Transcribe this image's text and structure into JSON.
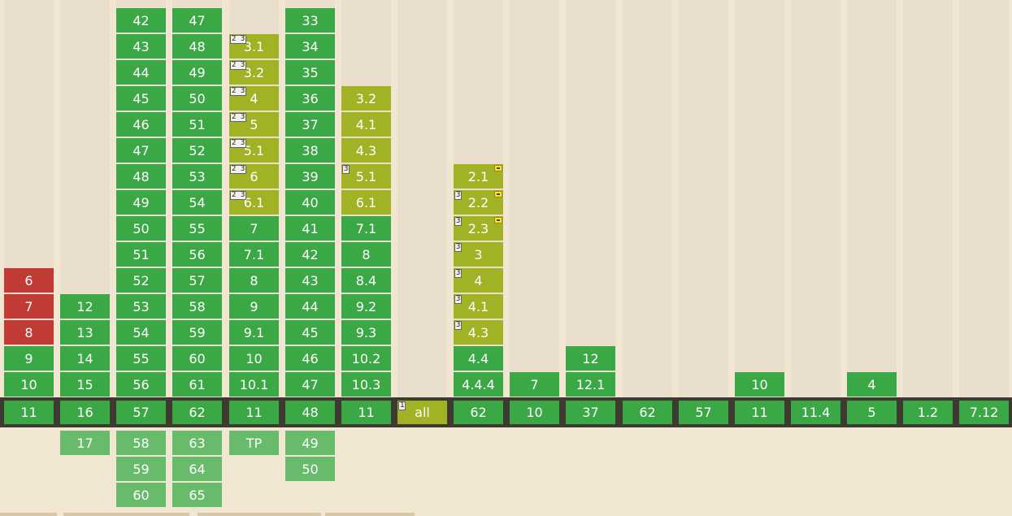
{
  "colors": {
    "supported": "#39a845",
    "partial": "#a1b224",
    "unsupported": "#c13b34",
    "future": "#69bb6c",
    "page_background": "#f1e6d2",
    "column_background": "#eadfcc",
    "current_band": "#3f3a31"
  },
  "columns": [
    {
      "cells": [
        {
          "label": "6",
          "status": "n"
        },
        {
          "label": "7",
          "status": "n"
        },
        {
          "label": "8",
          "status": "n"
        },
        {
          "label": "9",
          "status": "y"
        },
        {
          "label": "10",
          "status": "y"
        }
      ],
      "current": {
        "label": "11",
        "status": "y"
      },
      "future": []
    },
    {
      "cells": [
        {
          "label": "12",
          "status": "y"
        },
        {
          "label": "13",
          "status": "y"
        },
        {
          "label": "14",
          "status": "y"
        },
        {
          "label": "15",
          "status": "y"
        }
      ],
      "current": {
        "label": "16",
        "status": "y"
      },
      "future": [
        {
          "label": "17",
          "status": "f"
        }
      ]
    },
    {
      "cells": [
        {
          "label": "42",
          "status": "y"
        },
        {
          "label": "43",
          "status": "y"
        },
        {
          "label": "44",
          "status": "y"
        },
        {
          "label": "45",
          "status": "y"
        },
        {
          "label": "46",
          "status": "y"
        },
        {
          "label": "47",
          "status": "y"
        },
        {
          "label": "48",
          "status": "y"
        },
        {
          "label": "49",
          "status": "y"
        },
        {
          "label": "50",
          "status": "y"
        },
        {
          "label": "51",
          "status": "y"
        },
        {
          "label": "52",
          "status": "y"
        },
        {
          "label": "53",
          "status": "y"
        },
        {
          "label": "54",
          "status": "y"
        },
        {
          "label": "55",
          "status": "y"
        },
        {
          "label": "56",
          "status": "y"
        }
      ],
      "current": {
        "label": "57",
        "status": "y"
      },
      "future": [
        {
          "label": "58",
          "status": "f"
        },
        {
          "label": "59",
          "status": "f"
        },
        {
          "label": "60",
          "status": "f"
        }
      ]
    },
    {
      "cells": [
        {
          "label": "47",
          "status": "y"
        },
        {
          "label": "48",
          "status": "y"
        },
        {
          "label": "49",
          "status": "y"
        },
        {
          "label": "50",
          "status": "y"
        },
        {
          "label": "51",
          "status": "y"
        },
        {
          "label": "52",
          "status": "y"
        },
        {
          "label": "53",
          "status": "y"
        },
        {
          "label": "54",
          "status": "y"
        },
        {
          "label": "55",
          "status": "y"
        },
        {
          "label": "56",
          "status": "y"
        },
        {
          "label": "57",
          "status": "y"
        },
        {
          "label": "58",
          "status": "y"
        },
        {
          "label": "59",
          "status": "y"
        },
        {
          "label": "60",
          "status": "y"
        },
        {
          "label": "61",
          "status": "y"
        }
      ],
      "current": {
        "label": "62",
        "status": "y"
      },
      "future": [
        {
          "label": "63",
          "status": "f"
        },
        {
          "label": "64",
          "status": "f"
        },
        {
          "label": "65",
          "status": "f"
        }
      ]
    },
    {
      "cells": [
        {
          "label": "3.1",
          "status": "a",
          "note": "2 3"
        },
        {
          "label": "3.2",
          "status": "a",
          "note": "2 3"
        },
        {
          "label": "4",
          "status": "a",
          "note": "2 3"
        },
        {
          "label": "5",
          "status": "a",
          "note": "2 3"
        },
        {
          "label": "5.1",
          "status": "a",
          "note": "2 3"
        },
        {
          "label": "6",
          "status": "a",
          "note": "2 3"
        },
        {
          "label": "6.1",
          "status": "a",
          "note": "2 3"
        },
        {
          "label": "7",
          "status": "y"
        },
        {
          "label": "7.1",
          "status": "y"
        },
        {
          "label": "8",
          "status": "y"
        },
        {
          "label": "9",
          "status": "y"
        },
        {
          "label": "9.1",
          "status": "y"
        },
        {
          "label": "10",
          "status": "y"
        },
        {
          "label": "10.1",
          "status": "y"
        }
      ],
      "current": {
        "label": "11",
        "status": "y"
      },
      "future": [
        {
          "label": "TP",
          "status": "f"
        }
      ]
    },
    {
      "cells": [
        {
          "label": "33",
          "status": "y"
        },
        {
          "label": "34",
          "status": "y"
        },
        {
          "label": "35",
          "status": "y"
        },
        {
          "label": "36",
          "status": "y"
        },
        {
          "label": "37",
          "status": "y"
        },
        {
          "label": "38",
          "status": "y"
        },
        {
          "label": "39",
          "status": "y"
        },
        {
          "label": "40",
          "status": "y"
        },
        {
          "label": "41",
          "status": "y"
        },
        {
          "label": "42",
          "status": "y"
        },
        {
          "label": "43",
          "status": "y"
        },
        {
          "label": "44",
          "status": "y"
        },
        {
          "label": "45",
          "status": "y"
        },
        {
          "label": "46",
          "status": "y"
        },
        {
          "label": "47",
          "status": "y"
        }
      ],
      "current": {
        "label": "48",
        "status": "y"
      },
      "future": [
        {
          "label": "49",
          "status": "f"
        },
        {
          "label": "50",
          "status": "f"
        }
      ]
    },
    {
      "cells": [
        {
          "label": "3.2",
          "status": "a"
        },
        {
          "label": "4.1",
          "status": "a"
        },
        {
          "label": "4.3",
          "status": "a"
        },
        {
          "label": "5.1",
          "status": "a",
          "note": "3"
        },
        {
          "label": "6.1",
          "status": "a"
        },
        {
          "label": "7.1",
          "status": "y"
        },
        {
          "label": "8",
          "status": "y"
        },
        {
          "label": "8.4",
          "status": "y"
        },
        {
          "label": "9.2",
          "status": "y"
        },
        {
          "label": "9.3",
          "status": "y"
        },
        {
          "label": "10.2",
          "status": "y"
        },
        {
          "label": "10.3",
          "status": "y"
        }
      ],
      "current": {
        "label": "11",
        "status": "y"
      },
      "future": []
    },
    {
      "cells": [],
      "current": {
        "label": "all",
        "status": "a",
        "note": "1"
      },
      "future": []
    },
    {
      "cells": [
        {
          "label": "2.1",
          "status": "a",
          "flag": true
        },
        {
          "label": "2.2",
          "status": "a",
          "note": "3",
          "flag": true
        },
        {
          "label": "2.3",
          "status": "a",
          "note": "3",
          "flag": true
        },
        {
          "label": "3",
          "status": "a",
          "note": "3"
        },
        {
          "label": "4",
          "status": "a",
          "note": "3"
        },
        {
          "label": "4.1",
          "status": "a",
          "note": "3"
        },
        {
          "label": "4.3",
          "status": "a",
          "note": "3"
        },
        {
          "label": "4.4",
          "status": "y"
        },
        {
          "label": "4.4.4",
          "status": "y"
        }
      ],
      "current": {
        "label": "62",
        "status": "y"
      },
      "future": []
    },
    {
      "cells": [
        {
          "label": "7",
          "status": "y"
        }
      ],
      "current": {
        "label": "10",
        "status": "y"
      },
      "future": []
    },
    {
      "cells": [
        {
          "label": "12",
          "status": "y"
        },
        {
          "label": "12.1",
          "status": "y"
        }
      ],
      "current": {
        "label": "37",
        "status": "y"
      },
      "future": []
    },
    {
      "cells": [],
      "current": {
        "label": "62",
        "status": "y"
      },
      "future": []
    },
    {
      "cells": [],
      "current": {
        "label": "57",
        "status": "y"
      },
      "future": []
    },
    {
      "cells": [
        {
          "label": "10",
          "status": "y"
        }
      ],
      "current": {
        "label": "11",
        "status": "y"
      },
      "future": []
    },
    {
      "cells": [],
      "current": {
        "label": "11.4",
        "status": "y"
      },
      "future": []
    },
    {
      "cells": [
        {
          "label": "4",
          "status": "y"
        }
      ],
      "current": {
        "label": "5",
        "status": "y"
      },
      "future": []
    },
    {
      "cells": [],
      "current": {
        "label": "1.2",
        "status": "y"
      },
      "future": []
    },
    {
      "cells": [],
      "current": {
        "label": "7.12",
        "status": "y"
      },
      "future": []
    }
  ]
}
